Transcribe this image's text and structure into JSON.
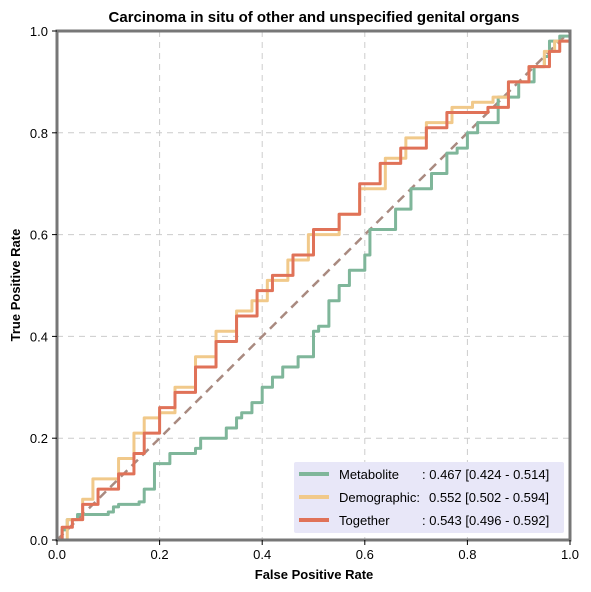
{
  "chart_data": {
    "type": "line",
    "title": "Carcinoma in situ of other and unspecified genital organs",
    "xlabel": "False Positive Rate",
    "ylabel": "True Positive Rate",
    "xlim": [
      0,
      1
    ],
    "ylim": [
      0,
      1
    ],
    "x_ticks": [
      "0.0",
      "0.2",
      "0.4",
      "0.6",
      "0.8",
      "1.0"
    ],
    "y_ticks": [
      "0.0",
      "0.2",
      "0.4",
      "0.6",
      "0.8",
      "1.0"
    ],
    "grid": true,
    "legend_position": "bottom-right",
    "diagonal": {
      "points": [
        [
          0,
          0
        ],
        [
          1,
          1
        ]
      ],
      "color": "#a98a80",
      "style": "dashed"
    },
    "series": [
      {
        "name": "Metabolite",
        "legend_label": "Metabolite",
        "legend_value": ": 0.467 [0.424 - 0.514]",
        "color": "#7fb69a",
        "points": [
          [
            0,
            0
          ],
          [
            0.01,
            0.02
          ],
          [
            0.02,
            0.04
          ],
          [
            0.04,
            0.05
          ],
          [
            0.1,
            0.055
          ],
          [
            0.11,
            0.065
          ],
          [
            0.12,
            0.07
          ],
          [
            0.16,
            0.075
          ],
          [
            0.17,
            0.1
          ],
          [
            0.19,
            0.15
          ],
          [
            0.22,
            0.17
          ],
          [
            0.27,
            0.18
          ],
          [
            0.28,
            0.2
          ],
          [
            0.33,
            0.22
          ],
          [
            0.35,
            0.24
          ],
          [
            0.36,
            0.25
          ],
          [
            0.38,
            0.27
          ],
          [
            0.4,
            0.3
          ],
          [
            0.42,
            0.32
          ],
          [
            0.44,
            0.34
          ],
          [
            0.47,
            0.36
          ],
          [
            0.5,
            0.41
          ],
          [
            0.51,
            0.42
          ],
          [
            0.53,
            0.47
          ],
          [
            0.55,
            0.5
          ],
          [
            0.57,
            0.53
          ],
          [
            0.6,
            0.56
          ],
          [
            0.61,
            0.61
          ],
          [
            0.66,
            0.65
          ],
          [
            0.69,
            0.69
          ],
          [
            0.73,
            0.72
          ],
          [
            0.76,
            0.76
          ],
          [
            0.78,
            0.77
          ],
          [
            0.8,
            0.8
          ],
          [
            0.82,
            0.82
          ],
          [
            0.86,
            0.87
          ],
          [
            0.9,
            0.9
          ],
          [
            0.93,
            0.93
          ],
          [
            0.95,
            0.95
          ],
          [
            0.96,
            0.98
          ],
          [
            0.98,
            0.99
          ],
          [
            1,
            1
          ]
        ]
      },
      {
        "name": "Demographic",
        "legend_label": "Demographic:",
        "legend_value": "0.552 [0.502 - 0.594]",
        "color": "#f1c98a",
        "points": [
          [
            0,
            0
          ],
          [
            0.02,
            0.04
          ],
          [
            0.05,
            0.08
          ],
          [
            0.07,
            0.12
          ],
          [
            0.12,
            0.16
          ],
          [
            0.15,
            0.21
          ],
          [
            0.17,
            0.24
          ],
          [
            0.2,
            0.25
          ],
          [
            0.23,
            0.3
          ],
          [
            0.27,
            0.36
          ],
          [
            0.31,
            0.41
          ],
          [
            0.35,
            0.45
          ],
          [
            0.38,
            0.47
          ],
          [
            0.41,
            0.51
          ],
          [
            0.45,
            0.55
          ],
          [
            0.49,
            0.6
          ],
          [
            0.55,
            0.64
          ],
          [
            0.59,
            0.69
          ],
          [
            0.64,
            0.75
          ],
          [
            0.68,
            0.79
          ],
          [
            0.72,
            0.82
          ],
          [
            0.77,
            0.85
          ],
          [
            0.81,
            0.86
          ],
          [
            0.85,
            0.87
          ],
          [
            0.88,
            0.9
          ],
          [
            0.92,
            0.93
          ],
          [
            0.95,
            0.96
          ],
          [
            0.97,
            0.98
          ],
          [
            1,
            1
          ]
        ]
      },
      {
        "name": "Together",
        "legend_label": "Together",
        "legend_value": ": 0.543 [0.496 - 0.592]",
        "color": "#e07258",
        "points": [
          [
            0,
            0
          ],
          [
            0.01,
            0.025
          ],
          [
            0.03,
            0.04
          ],
          [
            0.05,
            0.07
          ],
          [
            0.08,
            0.1
          ],
          [
            0.12,
            0.13
          ],
          [
            0.15,
            0.17
          ],
          [
            0.17,
            0.21
          ],
          [
            0.2,
            0.26
          ],
          [
            0.23,
            0.29
          ],
          [
            0.27,
            0.34
          ],
          [
            0.31,
            0.39
          ],
          [
            0.35,
            0.44
          ],
          [
            0.39,
            0.49
          ],
          [
            0.42,
            0.52
          ],
          [
            0.46,
            0.56
          ],
          [
            0.5,
            0.61
          ],
          [
            0.55,
            0.64
          ],
          [
            0.59,
            0.7
          ],
          [
            0.63,
            0.74
          ],
          [
            0.67,
            0.77
          ],
          [
            0.72,
            0.81
          ],
          [
            0.76,
            0.84
          ],
          [
            0.8,
            0.84
          ],
          [
            0.84,
            0.85
          ],
          [
            0.88,
            0.9
          ],
          [
            0.92,
            0.93
          ],
          [
            0.96,
            0.96
          ],
          [
            0.98,
            0.98
          ],
          [
            1,
            1
          ]
        ]
      }
    ],
    "legend_background": "#e8e7f8"
  }
}
